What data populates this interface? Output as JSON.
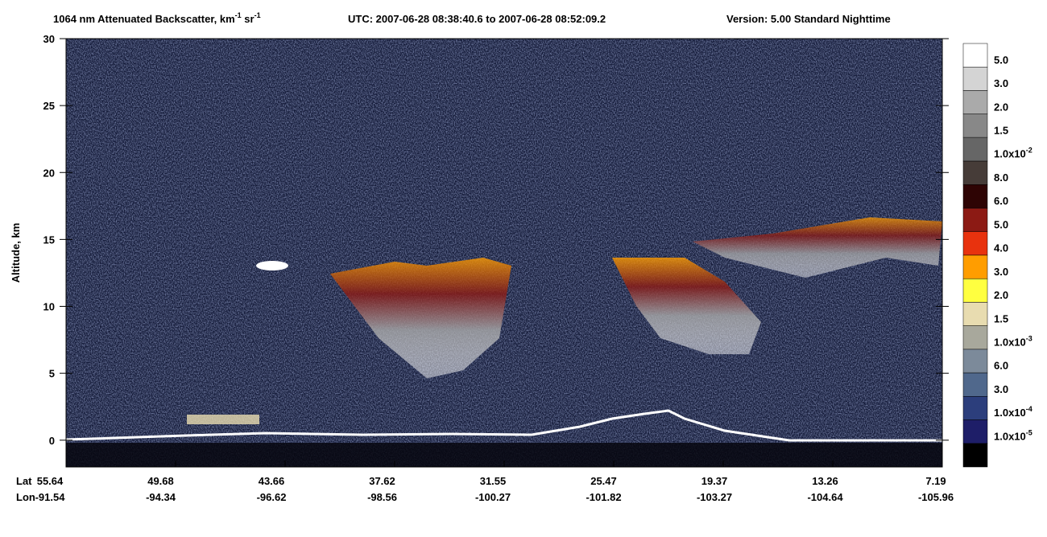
{
  "chart_data": {
    "type": "heatmap",
    "title": {
      "text": "1064 nm Attenuated Backscatter, km",
      "unit_exp": "-1",
      "unit2": " sr",
      "unit2_exp": "-1",
      "utc": "UTC:  2007-06-28 08:38:40.6  to  2007-06-28 08:52:09.2",
      "version": "Version: 5.00  Standard  Nighttime"
    },
    "y_label": "Altitude, km",
    "ylim": [
      -2,
      30
    ],
    "yticks": [
      0,
      5,
      10,
      15,
      20,
      25,
      30
    ],
    "x_row_labels": [
      "Lat",
      "Lon"
    ],
    "lat": [
      "55.64",
      "49.68",
      "43.66",
      "37.62",
      "31.55",
      "25.47",
      "19.37",
      "13.26",
      "7.19"
    ],
    "lon": [
      "-91.54",
      "-94.34",
      "-96.62",
      "-98.56",
      "-100.27",
      "-101.82",
      "-103.27",
      "-104.64",
      "-105.96"
    ],
    "colorbar": [
      {
        "color": "#ffffff",
        "label": "5.0"
      },
      {
        "color": "#d4d4d4",
        "label": "3.0"
      },
      {
        "color": "#aaaaaa",
        "label": "2.0"
      },
      {
        "color": "#888888",
        "label": "1.5"
      },
      {
        "color": "#666666",
        "label": "1.0x10",
        "exp": "-2"
      },
      {
        "color": "#463c38",
        "label": "8.0"
      },
      {
        "color": "#2e0404",
        "label": "6.0"
      },
      {
        "color": "#8c1a14",
        "label": "5.0"
      },
      {
        "color": "#e8320e",
        "label": "4.0"
      },
      {
        "color": "#ff9d00",
        "label": "3.0"
      },
      {
        "color": "#ffff40",
        "label": "2.0"
      },
      {
        "color": "#e8dcb0",
        "label": "1.5"
      },
      {
        "color": "#a8a89c",
        "label": "1.0x10",
        "exp": "-3"
      },
      {
        "color": "#7c8a9a",
        "label": "6.0"
      },
      {
        "color": "#50688c",
        "label": "3.0"
      },
      {
        "color": "#2c3e7c",
        "label": "1.0x10",
        "exp": "-4"
      },
      {
        "color": "#1e1e68",
        "label": "1.0x10",
        "exp": "-5"
      },
      {
        "color": "#000000"
      }
    ]
  }
}
